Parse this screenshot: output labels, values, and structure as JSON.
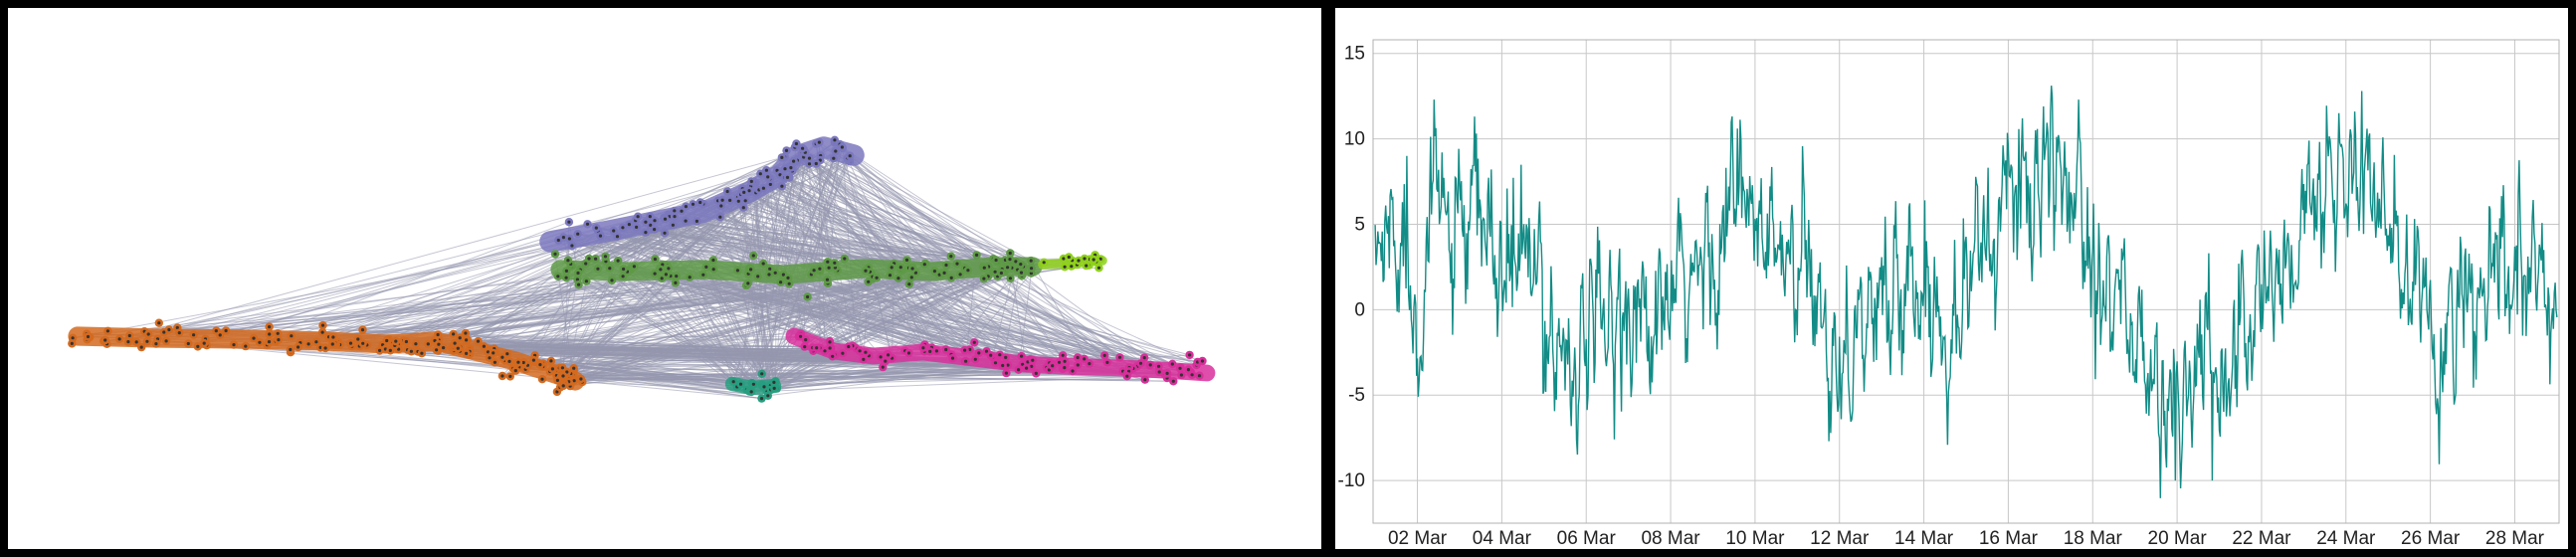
{
  "chart_data": [
    {
      "type": "network",
      "colors": {
        "edge": "#9598ae",
        "purple": "#7b78be",
        "green": "#5e9a46",
        "lime": "#8fd11a",
        "orange": "#d46a1f",
        "magenta": "#d82f9b",
        "teal": "#279e7f",
        "node_outline": "#333333"
      }
    },
    {
      "type": "line",
      "x_start": "2025-03-01",
      "x_end": "2025-03-29",
      "x_tick_labels": [
        "02 Mar",
        "04 Mar",
        "06 Mar",
        "08 Mar",
        "10 Mar",
        "12 Mar",
        "14 Mar",
        "16 Mar",
        "18 Mar",
        "20 Mar",
        "22 Mar",
        "24 Mar",
        "26 Mar",
        "28 Mar"
      ],
      "y_ticks": [
        15,
        10,
        5,
        0,
        -5,
        -10
      ],
      "ylim": [
        -12.5,
        15.8
      ],
      "line_color": "#128c86",
      "grid": true,
      "series_anchors": [
        [
          "2025-03-01T00:00",
          3
        ],
        [
          "2025-03-01T12:00",
          5
        ],
        [
          "2025-03-02T00:00",
          1
        ],
        [
          "2025-03-02T12:00",
          6
        ],
        [
          "2025-03-03T00:00",
          3
        ],
        [
          "2025-03-03T12:00",
          5
        ],
        [
          "2025-03-04T00:00",
          2
        ],
        [
          "2025-03-04T12:00",
          3
        ],
        [
          "2025-03-05T00:00",
          0
        ],
        [
          "2025-03-05T12:00",
          -2
        ],
        [
          "2025-03-06T00:00",
          -3
        ],
        [
          "2025-03-06T12:00",
          -1
        ],
        [
          "2025-03-07T00:00",
          1
        ],
        [
          "2025-03-07T12:00",
          -2
        ],
        [
          "2025-03-08T00:00",
          0
        ],
        [
          "2025-03-08T12:00",
          1
        ],
        [
          "2025-03-09T00:00",
          4
        ],
        [
          "2025-03-09T12:00",
          6
        ],
        [
          "2025-03-10T00:00",
          5
        ],
        [
          "2025-03-10T12:00",
          3
        ],
        [
          "2025-03-11T00:00",
          2
        ],
        [
          "2025-03-11T12:00",
          0
        ],
        [
          "2025-03-12T00:00",
          -2
        ],
        [
          "2025-03-12T12:00",
          -1
        ],
        [
          "2025-03-13T00:00",
          0
        ],
        [
          "2025-03-13T12:00",
          2
        ],
        [
          "2025-03-14T00:00",
          1
        ],
        [
          "2025-03-14T12:00",
          0
        ],
        [
          "2025-03-15T00:00",
          2
        ],
        [
          "2025-03-15T12:00",
          4
        ],
        [
          "2025-03-16T00:00",
          6
        ],
        [
          "2025-03-16T12:00",
          8
        ],
        [
          "2025-03-17T00:00",
          6
        ],
        [
          "2025-03-17T12:00",
          8
        ],
        [
          "2025-03-18T00:00",
          4
        ],
        [
          "2025-03-18T12:00",
          2
        ],
        [
          "2025-03-19T00:00",
          -2
        ],
        [
          "2025-03-19T12:00",
          -5
        ],
        [
          "2025-03-20T00:00",
          -6
        ],
        [
          "2025-03-20T12:00",
          -3
        ],
        [
          "2025-03-21T00:00",
          -4
        ],
        [
          "2025-03-21T12:00",
          -1
        ],
        [
          "2025-03-22T00:00",
          1
        ],
        [
          "2025-03-22T12:00",
          2
        ],
        [
          "2025-03-23T00:00",
          5
        ],
        [
          "2025-03-23T12:00",
          7
        ],
        [
          "2025-03-24T00:00",
          8
        ],
        [
          "2025-03-24T12:00",
          7
        ],
        [
          "2025-03-25T00:00",
          4
        ],
        [
          "2025-03-25T12:00",
          1
        ],
        [
          "2025-03-26T00:00",
          -1
        ],
        [
          "2025-03-26T12:00",
          -2
        ],
        [
          "2025-03-27T00:00",
          0
        ],
        [
          "2025-03-27T12:00",
          1
        ],
        [
          "2025-03-28T00:00",
          2
        ],
        [
          "2025-03-28T12:00",
          1
        ],
        [
          "2025-03-29T00:00",
          0
        ]
      ],
      "peaks": [
        [
          "2025-03-01T18:00",
          9.0
        ],
        [
          "2025-03-02T14:00",
          9.2
        ],
        [
          "2025-03-09T14:00",
          10.6
        ],
        [
          "2025-03-11T18:00",
          -7.7
        ],
        [
          "2025-03-16T08:00",
          11.2
        ],
        [
          "2025-03-17T16:00",
          12.3
        ],
        [
          "2025-03-19T23:00",
          -10.0
        ],
        [
          "2025-03-20T20:00",
          -10.0
        ],
        [
          "2025-03-23T20:00",
          11.5
        ],
        [
          "2025-03-24T09:00",
          12.8
        ],
        [
          "2025-03-28T02:00",
          6.8
        ]
      ]
    }
  ]
}
